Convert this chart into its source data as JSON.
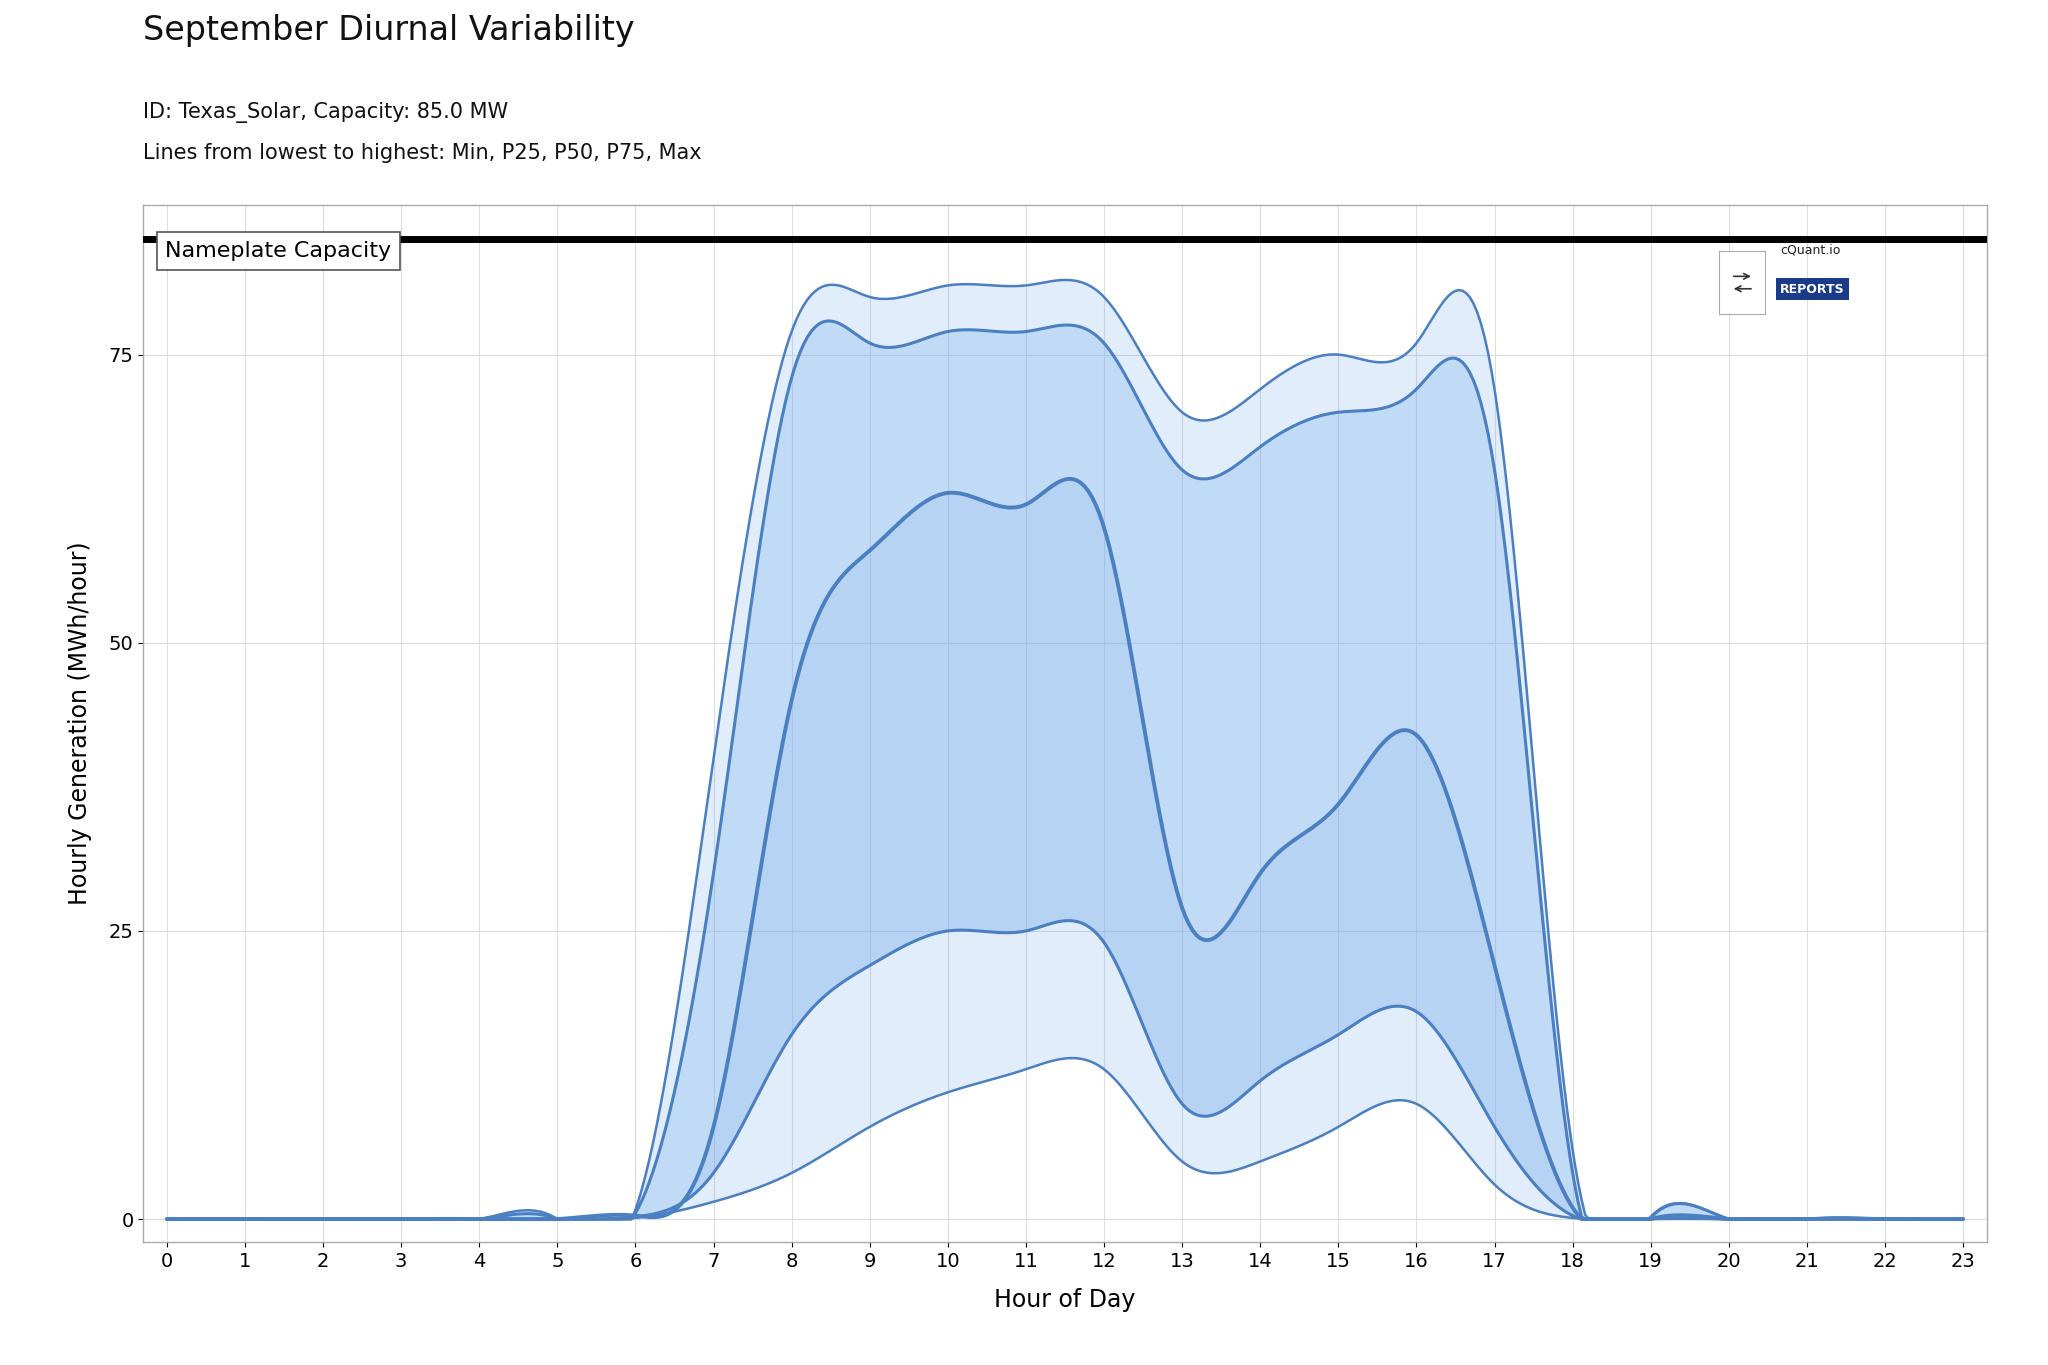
{
  "title": "September Diurnal Variability",
  "subtitle1": "ID: Texas_Solar, Capacity: 85.0 MW",
  "subtitle2": "Lines from lowest to highest: Min, P25, P50, P75, Max",
  "xlabel": "Hour of Day",
  "ylabel": "Hourly Generation (MWh/hour)",
  "nameplate_capacity": 85.0,
  "nameplate_label": "Nameplate Capacity",
  "hours": [
    0,
    1,
    2,
    3,
    4,
    5,
    6,
    7,
    8,
    9,
    10,
    11,
    12,
    13,
    14,
    15,
    16,
    17,
    18,
    19,
    20,
    21,
    22,
    23
  ],
  "min_curve": [
    0,
    0,
    0,
    0,
    0,
    0,
    0.1,
    1.5,
    4,
    8,
    11,
    13,
    13,
    5,
    5,
    8,
    10,
    3,
    0.1,
    0,
    0,
    0,
    0,
    0
  ],
  "p25_curve": [
    0,
    0,
    0,
    0,
    0,
    0,
    0.2,
    4,
    16,
    22,
    25,
    25,
    24,
    10,
    12,
    16,
    18,
    8,
    0.3,
    0,
    0,
    0,
    0,
    0
  ],
  "p50_curve": [
    0,
    0,
    0,
    0,
    0,
    0,
    0.3,
    8,
    45,
    58,
    63,
    62,
    60,
    27,
    30,
    36,
    42,
    22,
    1,
    0,
    0,
    0,
    0,
    0
  ],
  "p75_curve": [
    0,
    0,
    0,
    0,
    0,
    0,
    0.5,
    30,
    73,
    76,
    77,
    77,
    76,
    65,
    67,
    70,
    72,
    65,
    4,
    0.1,
    0,
    0,
    0,
    0
  ],
  "max_curve": [
    0,
    0,
    0,
    0,
    0,
    0,
    0.8,
    40,
    77,
    80,
    81,
    81,
    80,
    70,
    72,
    75,
    76,
    72,
    6,
    0.2,
    0,
    0,
    0,
    0
  ],
  "line_color": "#4a7fc1",
  "fill_color": "#7aafed",
  "background_color": "#ffffff",
  "grid_color": "#dddddd",
  "ylim": [
    -2,
    88
  ],
  "xlim": [
    -0.3,
    23.3
  ],
  "yticks": [
    0,
    25,
    50,
    75
  ],
  "title_fontsize": 24,
  "subtitle_fontsize": 15,
  "label_fontsize": 15,
  "tick_fontsize": 14,
  "watermark_text1": "cQuant.io",
  "watermark_text2": "REPORTS",
  "nameplate_color": "#000000"
}
